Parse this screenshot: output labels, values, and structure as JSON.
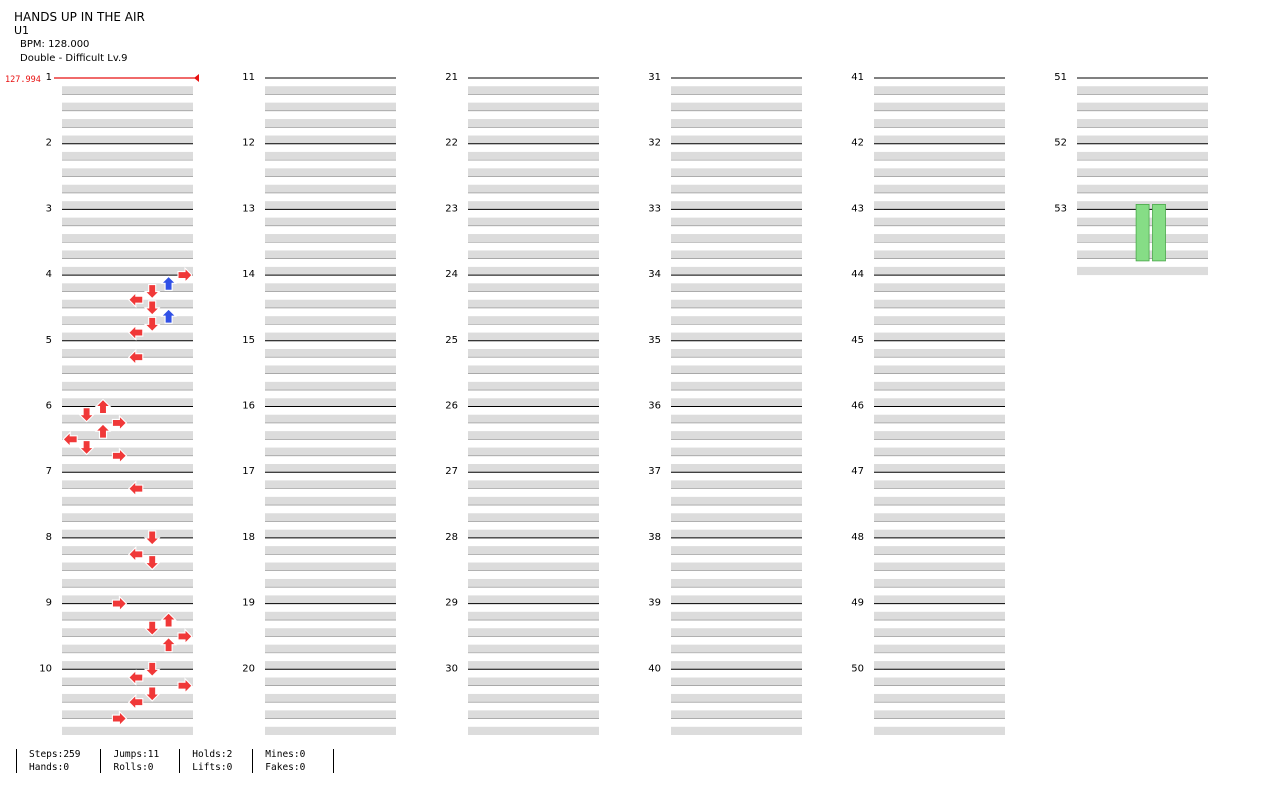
{
  "song": {
    "title": "HANDS UP IN THE AIR",
    "subtitle": "U1",
    "bpm_label": "BPM: 128.000",
    "difficulty_label": "Double - Difficult Lv.9"
  },
  "bpm_marker": "127.994",
  "colors": {
    "red_arrow": "#f03838",
    "blue_arrow": "#3050e6",
    "hold_body": "#86dd86",
    "stripe": "#dcdcdc",
    "bpm_marker": "#e81010"
  },
  "stats": [
    [
      "Steps:259",
      "Hands:0"
    ],
    [
      "Jumps:11",
      "Rolls:0"
    ],
    [
      "Holds:2",
      "Lifts:0"
    ],
    [
      "Mines:0",
      "Fakes:0"
    ]
  ],
  "measure_numbers": [
    "1",
    "2",
    "3",
    "4",
    "5",
    "6",
    "7",
    "8",
    "9",
    "10",
    "11",
    "12",
    "13",
    "14",
    "15",
    "16",
    "17",
    "18",
    "19",
    "20",
    "21",
    "22",
    "23",
    "24",
    "25",
    "26",
    "27",
    "28",
    "29",
    "30",
    "31",
    "32",
    "33",
    "34",
    "35",
    "36",
    "37",
    "38",
    "39",
    "40",
    "41",
    "42",
    "43",
    "44",
    "45",
    "46",
    "47",
    "48",
    "49",
    "50",
    "51",
    "52",
    "53"
  ],
  "note_legend": "arrow types: L=left, D=down, U=up, R=right; color r=red (quarter), b=blue (eighth); lanes 0-7 (P1 L D U R, P2 L D U R)",
  "notes": [
    [
      4,
      0,
      7,
      "r"
    ],
    [
      4,
      1,
      6,
      "b"
    ],
    [
      4,
      2,
      5,
      "r"
    ],
    [
      4,
      3,
      4,
      "L"
    ],
    [
      4,
      4,
      5,
      "r"
    ],
    [
      4,
      5,
      6,
      "b"
    ],
    [
      4,
      6,
      5,
      "r"
    ],
    [
      4,
      7,
      4,
      "L"
    ],
    [
      5,
      2,
      4,
      "L"
    ],
    [
      6,
      0,
      2,
      "U"
    ],
    [
      6,
      1,
      1,
      "D"
    ],
    [
      6,
      2,
      3,
      "R"
    ],
    [
      6,
      3,
      2,
      "U"
    ],
    [
      6,
      4,
      0,
      "L"
    ],
    [
      6,
      5,
      1,
      "D"
    ],
    [
      6,
      6,
      3,
      "R"
    ],
    [
      7,
      2,
      4,
      "L"
    ],
    [
      8,
      0,
      5,
      "D"
    ],
    [
      8,
      2,
      4,
      "L"
    ],
    [
      8,
      3,
      5,
      "D"
    ],
    [
      9,
      0,
      3,
      "R"
    ],
    [
      9,
      2,
      6,
      "U"
    ],
    [
      9,
      3,
      5,
      "D"
    ],
    [
      9,
      4,
      7,
      "R"
    ],
    [
      9,
      5,
      6,
      "U"
    ],
    [
      10,
      0,
      5,
      "D"
    ],
    [
      10,
      1,
      4,
      "L"
    ],
    [
      10,
      2,
      7,
      "R"
    ],
    [
      10,
      3,
      5,
      "D"
    ],
    [
      10,
      4,
      4,
      "L"
    ],
    [
      10,
      6,
      3,
      "R"
    ]
  ]
}
